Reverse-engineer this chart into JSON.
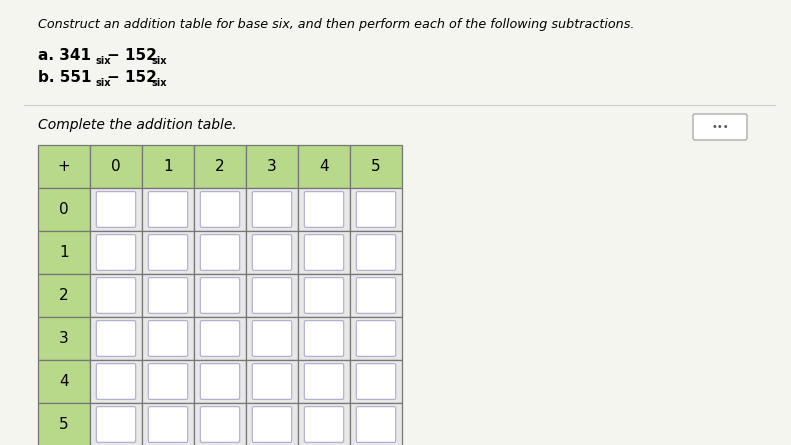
{
  "title": "Construct an addition table for base six, and then perform each of the following subtractions.",
  "subtitle": "Complete the addition table.",
  "header_bg": "#b8d98a",
  "cell_bg": "#e8e8e8",
  "inner_box_bg": "#ffffff",
  "table_border": "#777777",
  "inner_box_border": "#aaaacc",
  "header_labels": [
    "+",
    "0",
    "1",
    "2",
    "3",
    "4",
    "5"
  ],
  "row_labels": [
    "0",
    "1",
    "2",
    "3",
    "4",
    "5"
  ],
  "n_cols": 7,
  "n_rows": 7,
  "bg_color": "#f5f5f0",
  "dots_label": "•••"
}
